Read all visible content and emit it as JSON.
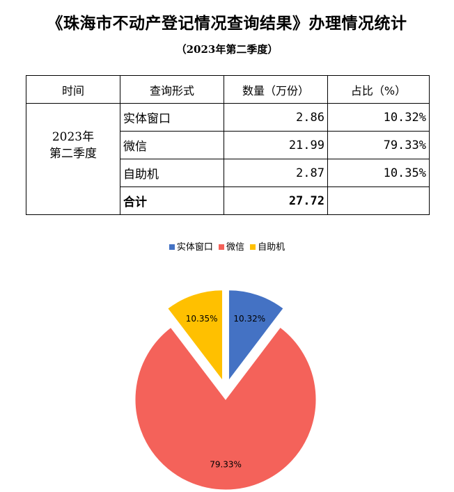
{
  "title": "《珠海市不动产登记情况查询结果》办理情况统计",
  "subtitle": "（2023年第二季度）",
  "table": {
    "headers": [
      "时间",
      "查询形式",
      "数量（万份）",
      "占比（%）"
    ],
    "period_line1": "2023年",
    "period_line2": "第二季度",
    "rows": [
      {
        "form": "实体窗口",
        "count": "2.86",
        "share": "10.32%"
      },
      {
        "form": "微信",
        "count": "21.99",
        "share": "79.33%"
      },
      {
        "form": "自助机",
        "count": "2.87",
        "share": "10.35%"
      }
    ],
    "total_label": "合计",
    "total_count": "27.72",
    "total_share": ""
  },
  "chart_data": {
    "type": "pie",
    "categories": [
      "实体窗口",
      "微信",
      "自助机"
    ],
    "values": [
      10.32,
      79.33,
      10.35
    ],
    "labels": [
      "10.32%",
      "79.33%",
      "10.35%"
    ],
    "colors": [
      "#4472C4",
      "#F4625A",
      "#FFC000"
    ],
    "exploded": true,
    "legend": "top"
  }
}
